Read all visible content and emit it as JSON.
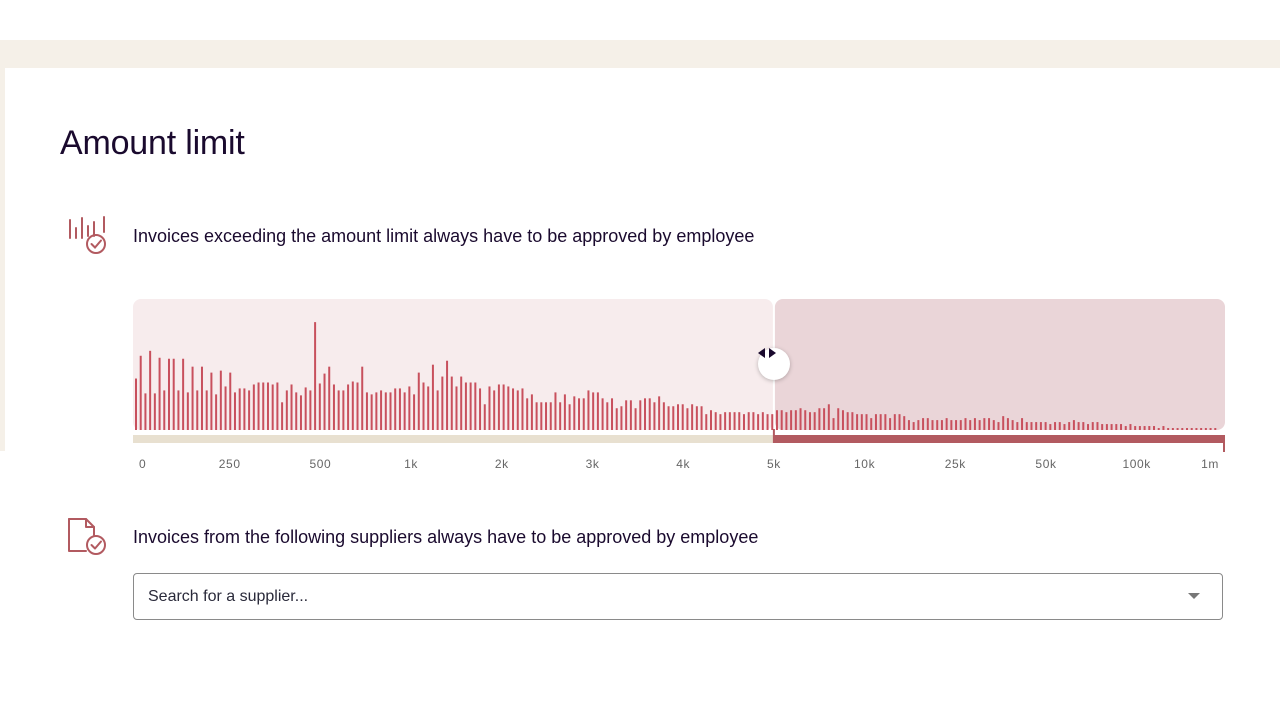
{
  "page": {
    "title": "Amount limit"
  },
  "sections": {
    "amount_limit": {
      "icon": "bar-chart-check-icon",
      "text": "Invoices exceeding the amount limit always have to be approved by employee"
    },
    "suppliers": {
      "icon": "document-check-icon",
      "text": "Invoices from the following suppliers always have to be approved by employee"
    }
  },
  "supplier_search": {
    "value": "",
    "placeholder": "Search for a supplier..."
  },
  "slider": {
    "selected_limit": "5k",
    "selected_index": 7,
    "handle_icon": "left-right-arrows-icon"
  },
  "colors": {
    "bar": "#c8505d",
    "region_below": "#f7eced",
    "region_above": "#ead5d8",
    "track_below": "#e8e0d0",
    "track_above": "#b25a60",
    "band": "#f5f0e8"
  },
  "chart_data": {
    "type": "bar",
    "tick_labels": [
      "0",
      "250",
      "500",
      "1k",
      "2k",
      "3k",
      "4k",
      "5k",
      "10k",
      "25k",
      "50k",
      "100k",
      "1m"
    ],
    "values": [
      52,
      75,
      37,
      80,
      37,
      73,
      40,
      72,
      72,
      40,
      72,
      38,
      64,
      40,
      64,
      40,
      58,
      36,
      60,
      44,
      58,
      38,
      42,
      42,
      40,
      46,
      48,
      48,
      48,
      46,
      48,
      28,
      40,
      46,
      38,
      35,
      43,
      40,
      109,
      47,
      57,
      64,
      46,
      40,
      40,
      46,
      49,
      48,
      64,
      38,
      36,
      38,
      40,
      38,
      38,
      42,
      42,
      38,
      44,
      36,
      58,
      48,
      44,
      66,
      40,
      54,
      70,
      54,
      44,
      54,
      48,
      48,
      48,
      42,
      26,
      44,
      40,
      46,
      46,
      44,
      42,
      40,
      42,
      32,
      36,
      28,
      28,
      28,
      28,
      38,
      28,
      36,
      26,
      34,
      32,
      32,
      40,
      38,
      38,
      32,
      28,
      32,
      22,
      24,
      30,
      30,
      22,
      30,
      32,
      32,
      28,
      34,
      28,
      24,
      24,
      26,
      26,
      22,
      26,
      24,
      24,
      16,
      20,
      18,
      16,
      18,
      18,
      18,
      18,
      16,
      18,
      18,
      16,
      18,
      16,
      16,
      20,
      20,
      18,
      20,
      20,
      22,
      20,
      18,
      18,
      22,
      22,
      26,
      12,
      22,
      20,
      18,
      18,
      16,
      16,
      16,
      12,
      16,
      16,
      16,
      12,
      16,
      16,
      14,
      10,
      8,
      10,
      12,
      12,
      10,
      10,
      10,
      12,
      10,
      10,
      10,
      12,
      10,
      12,
      10,
      12,
      12,
      10,
      8,
      14,
      12,
      10,
      8,
      12,
      8,
      8,
      8,
      8,
      8,
      6,
      8,
      8,
      6,
      8,
      10,
      8,
      8,
      6,
      8,
      8,
      6,
      6,
      6,
      6,
      6,
      4,
      6,
      4,
      4,
      4,
      4,
      4,
      2,
      4,
      2,
      2,
      2,
      2,
      2,
      2,
      2,
      2,
      2,
      2,
      2
    ]
  }
}
